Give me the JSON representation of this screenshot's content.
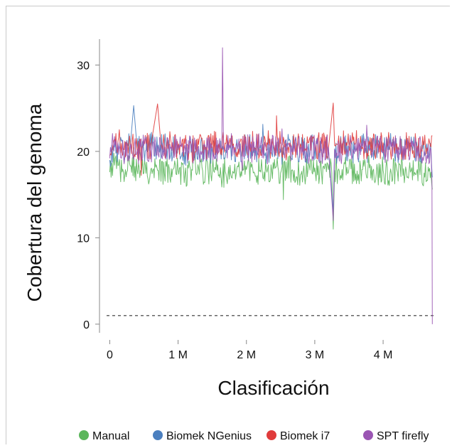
{
  "chart_data": {
    "type": "line",
    "title": "",
    "xlabel": "Clasificación",
    "ylabel": "Cobertura del genoma",
    "xlim": [
      -150000,
      4800000
    ],
    "ylim": [
      -1,
      33
    ],
    "x_ticks": [
      0,
      1000000,
      2000000,
      3000000,
      4000000
    ],
    "x_tick_labels": [
      "0",
      "1 M",
      "2 M",
      "3 M",
      "4 M"
    ],
    "y_ticks": [
      0,
      10,
      20,
      30
    ],
    "y_tick_labels": [
      "0",
      "10",
      "20",
      "30"
    ],
    "reference_line": {
      "y": 1,
      "style": "dashed"
    },
    "legend_position": "bottom",
    "series": [
      {
        "name": "Manual",
        "color": "#5bb65b",
        "points": [
          [
            0,
            17.6
          ],
          [
            50000,
            18.6
          ],
          [
            100000,
            18.0
          ],
          [
            150000,
            18.1
          ],
          [
            200000,
            17.6
          ],
          [
            300000,
            18.3
          ],
          [
            400000,
            17.8
          ],
          [
            500000,
            17.5
          ],
          [
            600000,
            17.9
          ],
          [
            700000,
            17.8
          ],
          [
            800000,
            17.4
          ],
          [
            900000,
            18.0
          ],
          [
            1000000,
            17.8
          ],
          [
            1100000,
            17.4
          ],
          [
            1200000,
            17.9
          ],
          [
            1300000,
            18.1
          ],
          [
            1400000,
            17.5
          ],
          [
            1500000,
            17.9
          ],
          [
            1600000,
            17.3
          ],
          [
            1650000,
            17.0
          ],
          [
            1700000,
            17.4
          ],
          [
            1800000,
            17.7
          ],
          [
            1900000,
            17.5
          ],
          [
            2000000,
            17.9
          ],
          [
            2100000,
            17.5
          ],
          [
            2200000,
            17.8
          ],
          [
            2300000,
            17.6
          ],
          [
            2400000,
            18.0
          ],
          [
            2500000,
            17.5
          ],
          [
            2600000,
            18.1
          ],
          [
            2700000,
            17.8
          ],
          [
            2800000,
            17.4
          ],
          [
            2900000,
            17.8
          ],
          [
            3000000,
            18.1
          ],
          [
            3100000,
            17.4
          ],
          [
            3200000,
            17.9
          ],
          [
            3250000,
            17.5
          ],
          [
            3270000,
            11.0
          ],
          [
            3290000,
            17.8
          ],
          [
            3400000,
            17.9
          ],
          [
            3500000,
            18.0
          ],
          [
            3600000,
            17.4
          ],
          [
            3700000,
            17.9
          ],
          [
            3800000,
            18.1
          ],
          [
            3900000,
            17.5
          ],
          [
            4000000,
            17.8
          ],
          [
            4100000,
            17.4
          ],
          [
            4200000,
            17.9
          ],
          [
            4300000,
            18.0
          ],
          [
            4400000,
            17.6
          ],
          [
            4500000,
            17.9
          ],
          [
            4600000,
            17.5
          ],
          [
            4700000,
            17.6
          ],
          [
            4720000,
            15.6
          ]
        ]
      },
      {
        "name": "Biomek NGenius",
        "color": "#4b7fbf",
        "points": [
          [
            0,
            19.0
          ],
          [
            50000,
            20.6
          ],
          [
            100000,
            20.2
          ],
          [
            150000,
            21.0
          ],
          [
            200000,
            20.0
          ],
          [
            300000,
            20.6
          ],
          [
            350000,
            25.3
          ],
          [
            400000,
            20.4
          ],
          [
            500000,
            20.2
          ],
          [
            600000,
            20.8
          ],
          [
            700000,
            20.1
          ],
          [
            800000,
            20.7
          ],
          [
            900000,
            20.3
          ],
          [
            1000000,
            20.6
          ],
          [
            1100000,
            19.9
          ],
          [
            1200000,
            20.5
          ],
          [
            1300000,
            20.3
          ],
          [
            1400000,
            20.4
          ],
          [
            1500000,
            20.0
          ],
          [
            1600000,
            20.5
          ],
          [
            1700000,
            20.1
          ],
          [
            1800000,
            20.4
          ],
          [
            1900000,
            20.0
          ],
          [
            2000000,
            20.6
          ],
          [
            2100000,
            20.2
          ],
          [
            2200000,
            20.4
          ],
          [
            2300000,
            20.1
          ],
          [
            2400000,
            20.5
          ],
          [
            2500000,
            19.9
          ],
          [
            2600000,
            20.6
          ],
          [
            2700000,
            20.2
          ],
          [
            2800000,
            20.4
          ],
          [
            2900000,
            20.0
          ],
          [
            3000000,
            20.6
          ],
          [
            3100000,
            20.2
          ],
          [
            3200000,
            20.4
          ],
          [
            3270000,
            13.0
          ],
          [
            3290000,
            20.3
          ],
          [
            3400000,
            20.2
          ],
          [
            3500000,
            20.5
          ],
          [
            3600000,
            20.0
          ],
          [
            3700000,
            20.6
          ],
          [
            3800000,
            20.1
          ],
          [
            3900000,
            20.4
          ],
          [
            4000000,
            20.2
          ],
          [
            4100000,
            20.6
          ],
          [
            4200000,
            20.0
          ],
          [
            4300000,
            20.5
          ],
          [
            4400000,
            20.1
          ],
          [
            4500000,
            20.4
          ],
          [
            4600000,
            20.2
          ],
          [
            4700000,
            20.3
          ],
          [
            4720000,
            17.0
          ]
        ]
      },
      {
        "name": "Biomek i7",
        "color": "#e03b3b",
        "points": [
          [
            0,
            19.5
          ],
          [
            50000,
            21.0
          ],
          [
            100000,
            20.4
          ],
          [
            150000,
            21.2
          ],
          [
            200000,
            20.3
          ],
          [
            300000,
            20.8
          ],
          [
            400000,
            20.2
          ],
          [
            500000,
            21.0
          ],
          [
            600000,
            20.6
          ],
          [
            700000,
            25.5
          ],
          [
            750000,
            20.8
          ],
          [
            800000,
            20.3
          ],
          [
            900000,
            21.0
          ],
          [
            1000000,
            20.5
          ],
          [
            1100000,
            20.9
          ],
          [
            1200000,
            20.2
          ],
          [
            1300000,
            20.8
          ],
          [
            1400000,
            20.4
          ],
          [
            1500000,
            21.0
          ],
          [
            1600000,
            20.3
          ],
          [
            1700000,
            20.9
          ],
          [
            1800000,
            20.5
          ],
          [
            1900000,
            21.0
          ],
          [
            2000000,
            20.4
          ],
          [
            2100000,
            20.8
          ],
          [
            2200000,
            20.3
          ],
          [
            2300000,
            21.0
          ],
          [
            2400000,
            20.5
          ],
          [
            2500000,
            20.9
          ],
          [
            2600000,
            20.2
          ],
          [
            2700000,
            20.8
          ],
          [
            2800000,
            20.6
          ],
          [
            2900000,
            21.0
          ],
          [
            3000000,
            20.4
          ],
          [
            3100000,
            20.9
          ],
          [
            3200000,
            20.3
          ],
          [
            3270000,
            25.6
          ],
          [
            3290000,
            20.7
          ],
          [
            3400000,
            20.9
          ],
          [
            3500000,
            20.4
          ],
          [
            3600000,
            21.0
          ],
          [
            3700000,
            20.5
          ],
          [
            3800000,
            20.8
          ],
          [
            3900000,
            20.3
          ],
          [
            4000000,
            21.0
          ],
          [
            4100000,
            20.5
          ],
          [
            4200000,
            20.9
          ],
          [
            4300000,
            20.4
          ],
          [
            4400000,
            21.0
          ],
          [
            4500000,
            20.6
          ],
          [
            4600000,
            20.8
          ],
          [
            4700000,
            20.5
          ],
          [
            4720000,
            21.8
          ]
        ]
      },
      {
        "name": "SPT firefly",
        "color": "#9a55b3",
        "points": [
          [
            0,
            19.2
          ],
          [
            50000,
            20.8
          ],
          [
            100000,
            20.0
          ],
          [
            150000,
            20.6
          ],
          [
            200000,
            19.8
          ],
          [
            300000,
            20.5
          ],
          [
            400000,
            20.0
          ],
          [
            500000,
            20.7
          ],
          [
            600000,
            20.1
          ],
          [
            700000,
            20.6
          ],
          [
            800000,
            19.9
          ],
          [
            900000,
            20.5
          ],
          [
            1000000,
            20.2
          ],
          [
            1100000,
            20.7
          ],
          [
            1200000,
            20.0
          ],
          [
            1300000,
            20.6
          ],
          [
            1400000,
            20.1
          ],
          [
            1500000,
            20.5
          ],
          [
            1600000,
            20.0
          ],
          [
            1640000,
            20.4
          ],
          [
            1650000,
            32.0
          ],
          [
            1665000,
            20.3
          ],
          [
            1700000,
            20.1
          ],
          [
            1800000,
            20.6
          ],
          [
            1900000,
            20.0
          ],
          [
            2000000,
            20.5
          ],
          [
            2100000,
            20.1
          ],
          [
            2200000,
            20.6
          ],
          [
            2300000,
            20.0
          ],
          [
            2400000,
            20.4
          ],
          [
            2500000,
            20.2
          ],
          [
            2600000,
            20.6
          ],
          [
            2700000,
            20.0
          ],
          [
            2800000,
            20.5
          ],
          [
            2900000,
            20.1
          ],
          [
            3000000,
            20.6
          ],
          [
            3100000,
            20.0
          ],
          [
            3200000,
            20.5
          ],
          [
            3270000,
            12.0
          ],
          [
            3290000,
            20.2
          ],
          [
            3400000,
            20.1
          ],
          [
            3500000,
            20.6
          ],
          [
            3600000,
            20.0
          ],
          [
            3700000,
            20.5
          ],
          [
            3800000,
            20.1
          ],
          [
            3900000,
            20.6
          ],
          [
            4000000,
            20.0
          ],
          [
            4100000,
            20.5
          ],
          [
            4200000,
            20.2
          ],
          [
            4300000,
            20.6
          ],
          [
            4400000,
            20.0
          ],
          [
            4500000,
            20.5
          ],
          [
            4600000,
            20.1
          ],
          [
            4700000,
            20.2
          ],
          [
            4715000,
            16.5
          ],
          [
            4720000,
            0.0
          ]
        ]
      }
    ]
  }
}
